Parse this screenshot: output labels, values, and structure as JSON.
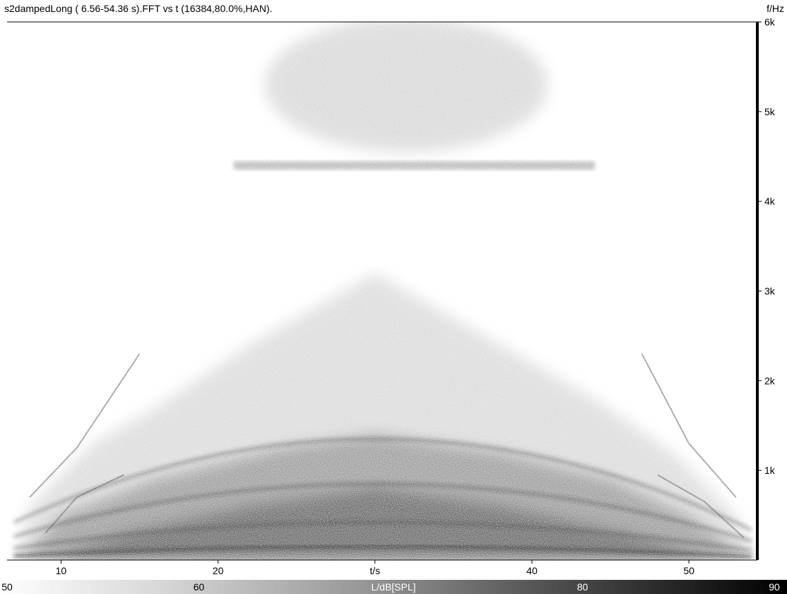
{
  "chart_data": {
    "type": "heatmap",
    "title": "s2dampedLong ( 6.56-54.36 s).FFT vs t (16384,80.0%,HAN).",
    "xlabel": "t/s",
    "ylabel": "f/Hz",
    "x_ticks": [
      10,
      20,
      30,
      40,
      50
    ],
    "x_tick_labels": [
      "10",
      "20",
      "t/s",
      "40",
      "50"
    ],
    "xlim": [
      6.56,
      54.36
    ],
    "y_ticks": [
      1000,
      2000,
      3000,
      4000,
      5000,
      6000
    ],
    "y_tick_labels": [
      "1k",
      "2k",
      "3k",
      "4k",
      "5k",
      "6k"
    ],
    "ylim": [
      0,
      6000
    ],
    "colorbar": {
      "label": "L/dB[SPL]",
      "range": [
        50,
        90
      ],
      "ticks": [
        50,
        60,
        80,
        90
      ],
      "tick_labels": [
        "50",
        "60",
        "80",
        "90"
      ],
      "colors": [
        "#ffffff",
        "#000000"
      ]
    },
    "features": [
      {
        "name": "broadband-hump",
        "t_peak": 30,
        "f_max": 3200
      },
      {
        "name": "band-4.4k",
        "t_range": [
          21,
          44
        ],
        "f": 4400
      },
      {
        "name": "band-5.3k",
        "t_range": [
          23,
          41
        ],
        "f": 5300
      },
      {
        "name": "harmonics",
        "f_at_peak": [
          150,
          420,
          850,
          1350
        ]
      }
    ]
  }
}
